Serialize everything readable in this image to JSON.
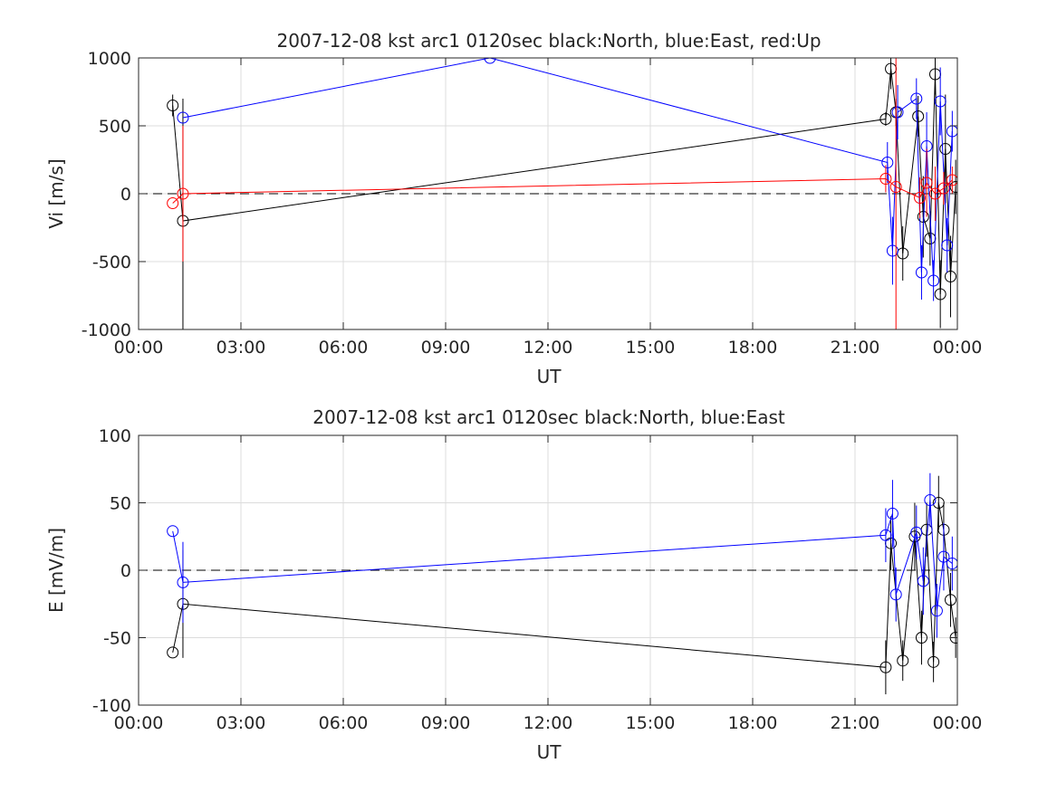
{
  "chart_data": [
    {
      "type": "scatter",
      "title": "2007-12-08 kst arc1 0120sec black:North, blue:East, red:Up",
      "xlabel": "UT",
      "ylabel": "Vi [m/s]",
      "xlim": [
        0,
        24
      ],
      "ylim": [
        -1000,
        1000
      ],
      "xticks": [
        0,
        3,
        6,
        9,
        12,
        15,
        18,
        21,
        24
      ],
      "xtick_labels": [
        "00:00",
        "03:00",
        "06:00",
        "09:00",
        "12:00",
        "15:00",
        "18:00",
        "21:00",
        "00:00"
      ],
      "yticks": [
        1000,
        500,
        0,
        -500,
        -1000
      ],
      "ytick_labels": [
        "1000",
        "500",
        "0",
        "-500",
        "-1000"
      ],
      "grid": true,
      "zero_line": true,
      "series": [
        {
          "name": "North",
          "color": "#000000",
          "x": [
            1.0,
            1.3,
            21.9,
            22.05,
            22.2,
            22.4,
            22.85,
            23.0,
            23.2,
            23.35,
            23.5,
            23.65,
            23.8,
            23.95
          ],
          "y": [
            650,
            -200,
            550,
            920,
            600,
            -440,
            570,
            -170,
            -330,
            880,
            -740,
            330,
            -610,
            50
          ],
          "err": [
            80,
            900,
            50,
            150,
            100,
            200,
            150,
            300,
            200,
            150,
            250,
            400,
            300,
            200
          ]
        },
        {
          "name": "East",
          "color": "#0000ff",
          "x": [
            1.3,
            10.3,
            21.95,
            22.1,
            22.25,
            22.8,
            22.95,
            23.1,
            23.3,
            23.5,
            23.7,
            23.85
          ],
          "y": [
            560,
            1000,
            230,
            -420,
            600,
            700,
            -580,
            350,
            -640,
            680,
            -380,
            460
          ],
          "err": [
            0,
            0,
            150,
            250,
            200,
            150,
            200,
            250,
            150,
            250,
            200,
            150
          ]
        },
        {
          "name": "Up",
          "color": "#ff0000",
          "x": [
            1.0,
            1.3,
            21.9,
            22.2,
            22.9,
            23.1,
            23.35,
            23.6,
            23.85
          ],
          "y": [
            -70,
            0,
            110,
            50,
            -30,
            80,
            0,
            40,
            100
          ],
          "err": [
            0,
            500,
            100,
            1100,
            150,
            250,
            200,
            120,
            100
          ]
        }
      ]
    },
    {
      "type": "scatter",
      "title": "2007-12-08 kst arc1 0120sec black:North, blue:East",
      "xlabel": "UT",
      "ylabel": "E [mV/m]",
      "xlim": [
        0,
        24
      ],
      "ylim": [
        -100,
        100
      ],
      "xticks": [
        0,
        3,
        6,
        9,
        12,
        15,
        18,
        21,
        24
      ],
      "xtick_labels": [
        "00:00",
        "03:00",
        "06:00",
        "09:00",
        "12:00",
        "15:00",
        "18:00",
        "21:00",
        "00:00"
      ],
      "yticks": [
        100,
        50,
        0,
        -50,
        -100
      ],
      "ytick_labels": [
        "100",
        "50",
        "0",
        "-50",
        "-100"
      ],
      "grid": true,
      "zero_line": true,
      "series": [
        {
          "name": "North",
          "color": "#000000",
          "x": [
            1.0,
            1.3,
            21.9,
            22.05,
            22.4,
            22.75,
            22.95,
            23.1,
            23.3,
            23.45,
            23.6,
            23.8,
            23.95
          ],
          "y": [
            -61,
            -25,
            -72,
            20,
            -67,
            25,
            -50,
            30,
            -68,
            50,
            30,
            -22,
            -50
          ],
          "err": [
            0,
            40,
            20,
            20,
            15,
            25,
            20,
            20,
            15,
            20,
            20,
            20,
            15
          ]
        },
        {
          "name": "East",
          "color": "#0000ff",
          "x": [
            1.0,
            1.3,
            21.9,
            22.1,
            22.2,
            22.8,
            23.0,
            23.2,
            23.4,
            23.6,
            23.85
          ],
          "y": [
            29,
            -9,
            26,
            42,
            -18,
            28,
            -8,
            52,
            -30,
            10,
            5
          ],
          "err": [
            0,
            30,
            20,
            25,
            20,
            20,
            25,
            20,
            20,
            25,
            20
          ]
        }
      ]
    }
  ]
}
